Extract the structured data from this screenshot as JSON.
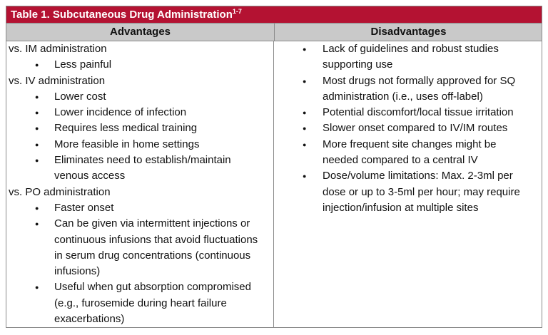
{
  "title": "Table 1. Subcutaneous Drug Administration",
  "title_superscript": "1-7",
  "colors": {
    "title_bar": "#b41232",
    "header_bg": "#c9c9c9"
  },
  "headers": [
    "Advantages",
    "Disadvantages"
  ],
  "advantages": [
    {
      "heading": "vs. IM administration",
      "items": [
        "Less painful"
      ]
    },
    {
      "heading": "vs. IV administration",
      "items": [
        "Lower cost",
        "Lower incidence of infection",
        "Requires less medical training",
        "More feasible in home settings",
        "Eliminates need to establish/maintain venous access"
      ]
    },
    {
      "heading": "vs. PO administration",
      "items": [
        "Faster onset",
        "Can be given via intermittent injections or continuous infusions that avoid fluctuations in serum drug concentrations (continuous infusions)",
        "Useful when gut absorption compromised (e.g., furosemide during heart failure exacerbations)"
      ]
    }
  ],
  "disadvantages": [
    "Lack of guidelines and robust studies supporting use",
    "Most drugs not formally approved for SQ administration (i.e., uses off-label)",
    "Potential discomfort/local tissue irritation",
    "Slower onset compared to IV/IM routes",
    "More frequent site changes might be needed compared to a central IV",
    "Dose/volume limitations: Max. 2-3ml per dose or up to 3-5ml per hour; may require injection/infusion at multiple sites"
  ]
}
